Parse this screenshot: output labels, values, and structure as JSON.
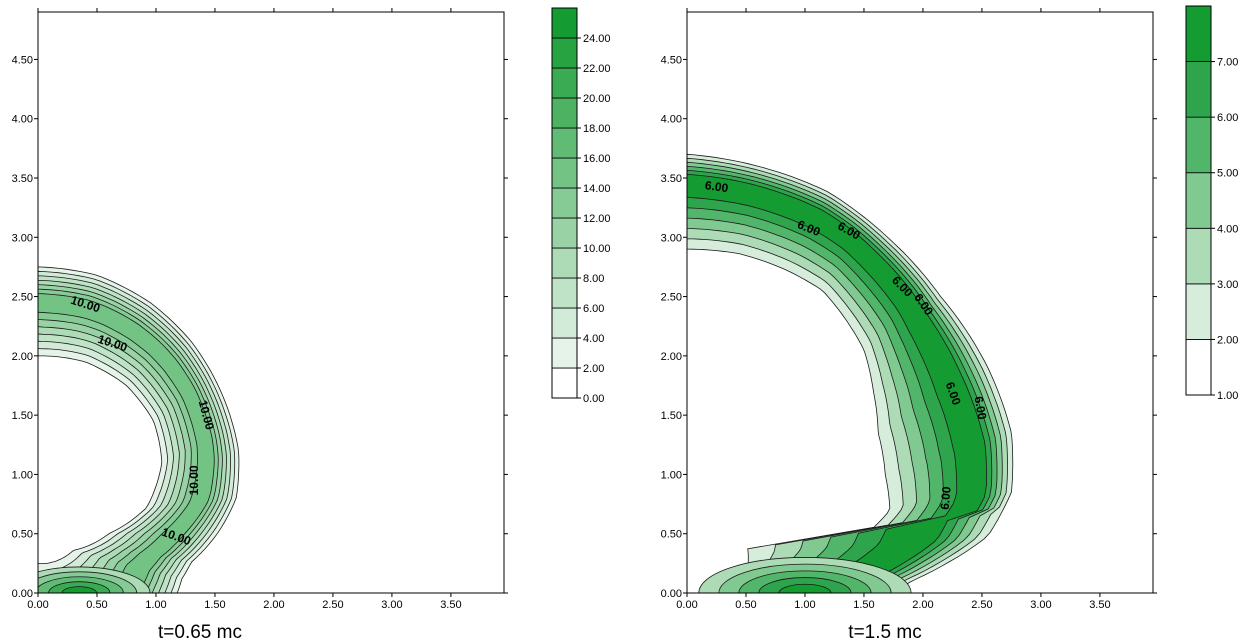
{
  "chart_data": [
    {
      "type": "contour",
      "caption": "t=0.65 mc",
      "xlim": [
        0,
        3.95
      ],
      "ylim": [
        0,
        4.9
      ],
      "x_ticks": [
        0.0,
        0.5,
        1.0,
        1.5,
        2.0,
        2.5,
        3.0,
        3.5
      ],
      "x_tick_labels": [
        "0.00",
        "0.50",
        "1.00",
        "1.50",
        "2.00",
        "2.50",
        "3.00",
        "3.50"
      ],
      "y_ticks": [
        0.0,
        0.5,
        1.0,
        1.5,
        2.0,
        2.5,
        3.0,
        3.5,
        4.0,
        4.5
      ],
      "y_tick_labels": [
        "0.00",
        "0.50",
        "1.00",
        "1.50",
        "2.00",
        "2.50",
        "3.00",
        "3.50",
        "4.00",
        "4.50"
      ],
      "colorbar": {
        "levels": [
          0,
          2,
          4,
          6,
          8,
          10,
          12,
          14,
          16,
          18,
          20,
          22,
          24,
          26
        ],
        "labels": [
          "0.00",
          "2.00",
          "4.00",
          "6.00",
          "8.00",
          "10.00",
          "12.00",
          "14.00",
          "16.00",
          "18.00",
          "20.00",
          "22.00",
          "24.00"
        ],
        "colors": [
          "#ffffff",
          "#e6f3e9",
          "#d2ebd8",
          "#bfe3c7",
          "#acdbb6",
          "#99d3a5",
          "#86cb95",
          "#73c384",
          "#60bb74",
          "#4db363",
          "#3aab53",
          "#27a342",
          "#149b32"
        ]
      },
      "contour_labels": [
        {
          "text": "10.00",
          "x": 0.4,
          "y": 2.43,
          "angle": 18
        },
        {
          "text": "10.00",
          "x": 0.63,
          "y": 2.1,
          "angle": 18
        },
        {
          "text": "10.00",
          "x": 1.42,
          "y": 1.5,
          "angle": 75
        },
        {
          "text": "10.00",
          "x": 1.33,
          "y": 0.95,
          "angle": -90
        },
        {
          "text": "10.00",
          "x": 1.17,
          "y": 0.47,
          "angle": 20
        }
      ],
      "ring": {
        "cx": -0.2,
        "cy": 0.5,
        "outer": [
          [
            0,
            2.75
          ],
          [
            0.5,
            2.68
          ],
          [
            0.95,
            2.45
          ],
          [
            1.3,
            2.12
          ],
          [
            1.55,
            1.7
          ],
          [
            1.7,
            1.2
          ],
          [
            1.68,
            0.8
          ],
          [
            1.52,
            0.5
          ],
          [
            1.3,
            0.26
          ],
          [
            1.22,
            0.12
          ],
          [
            1.18,
            0
          ]
        ],
        "inner": [
          [
            0,
            2.0
          ],
          [
            0.4,
            1.95
          ],
          [
            0.75,
            1.75
          ],
          [
            0.98,
            1.45
          ],
          [
            1.05,
            1.1
          ],
          [
            0.92,
            0.72
          ],
          [
            0.6,
            0.5
          ],
          [
            0.3,
            0.36
          ],
          [
            0,
            0.25
          ]
        ],
        "peak_band_levels": [
          2,
          4,
          6,
          8,
          10,
          12,
          14
        ],
        "peak_fraction": 0.62
      },
      "hotspot": {
        "cx": 0.35,
        "cy": 0.0,
        "rx": 0.6,
        "ry": 0.22,
        "levels": [
          10,
          14,
          18,
          22,
          26
        ]
      }
    },
    {
      "type": "contour",
      "caption": "t=1.5 mc",
      "xlim": [
        0,
        3.95
      ],
      "ylim": [
        0,
        4.9
      ],
      "x_ticks": [
        0.0,
        0.5,
        1.0,
        1.5,
        2.0,
        2.5,
        3.0,
        3.5
      ],
      "x_tick_labels": [
        "0.00",
        "0.50",
        "1.00",
        "1.50",
        "2.00",
        "2.50",
        "3.00",
        "3.50"
      ],
      "y_ticks": [
        0.0,
        0.5,
        1.0,
        1.5,
        2.0,
        2.5,
        3.0,
        3.5,
        4.0,
        4.5
      ],
      "y_tick_labels": [
        "0.00",
        "0.50",
        "1.00",
        "1.50",
        "2.00",
        "2.50",
        "3.00",
        "3.50",
        "4.00",
        "4.50"
      ],
      "colorbar": {
        "levels": [
          1,
          2,
          3,
          4,
          5,
          6,
          7,
          8
        ],
        "labels": [
          "1.00",
          "2.00",
          "3.00",
          "4.00",
          "5.00",
          "6.00",
          "7.00"
        ],
        "colors": [
          "#ffffff",
          "#d6eddb",
          "#acdbb6",
          "#80c990",
          "#52b66a",
          "#2ea54c",
          "#149b32"
        ]
      },
      "contour_labels": [
        {
          "text": "6.00",
          "x": 0.25,
          "y": 3.42,
          "angle": 8
        },
        {
          "text": "6.00",
          "x": 1.03,
          "y": 3.07,
          "angle": 22
        },
        {
          "text": "6.00",
          "x": 1.37,
          "y": 3.05,
          "angle": 30
        },
        {
          "text": "6.00",
          "x": 1.82,
          "y": 2.58,
          "angle": 45
        },
        {
          "text": "6.00",
          "x": 2.0,
          "y": 2.43,
          "angle": 55
        },
        {
          "text": "6.00",
          "x": 2.25,
          "y": 1.68,
          "angle": 70
        },
        {
          "text": "6.00",
          "x": 2.48,
          "y": 1.56,
          "angle": 80
        },
        {
          "text": "6.00",
          "x": 2.2,
          "y": 0.8,
          "angle": -85
        }
      ],
      "ring": {
        "cx": 0.0,
        "cy": 0.3,
        "outer": [
          [
            0,
            3.7
          ],
          [
            0.6,
            3.6
          ],
          [
            1.2,
            3.38
          ],
          [
            1.7,
            3.0
          ],
          [
            2.15,
            2.5
          ],
          [
            2.55,
            1.9
          ],
          [
            2.75,
            1.35
          ],
          [
            2.75,
            0.85
          ],
          [
            2.55,
            0.48
          ],
          [
            2.2,
            0.25
          ],
          [
            1.9,
            0.1
          ],
          [
            1.75,
            0
          ]
        ],
        "inner": [
          [
            0,
            2.9
          ],
          [
            0.45,
            2.86
          ],
          [
            0.85,
            2.72
          ],
          [
            1.15,
            2.55
          ],
          [
            1.35,
            2.3
          ],
          [
            1.5,
            2.05
          ],
          [
            1.58,
            1.7
          ],
          [
            1.62,
            1.35
          ],
          [
            1.68,
            1.0
          ],
          [
            1.72,
            0.7
          ],
          [
            1.58,
            0.55
          ],
          [
            1.2,
            0.6
          ],
          [
            0.7,
            0.6
          ],
          [
            0.35,
            0.68
          ],
          [
            0,
            0.82
          ]
        ],
        "peak_band_levels": [
          2,
          3,
          4,
          5,
          6,
          7
        ],
        "peak_fraction": 0.72
      },
      "hotspot": {
        "cx": 1.0,
        "cy": 0.0,
        "rx": 0.9,
        "ry": 0.3,
        "levels": [
          4,
          5,
          6,
          7,
          8
        ]
      }
    }
  ]
}
